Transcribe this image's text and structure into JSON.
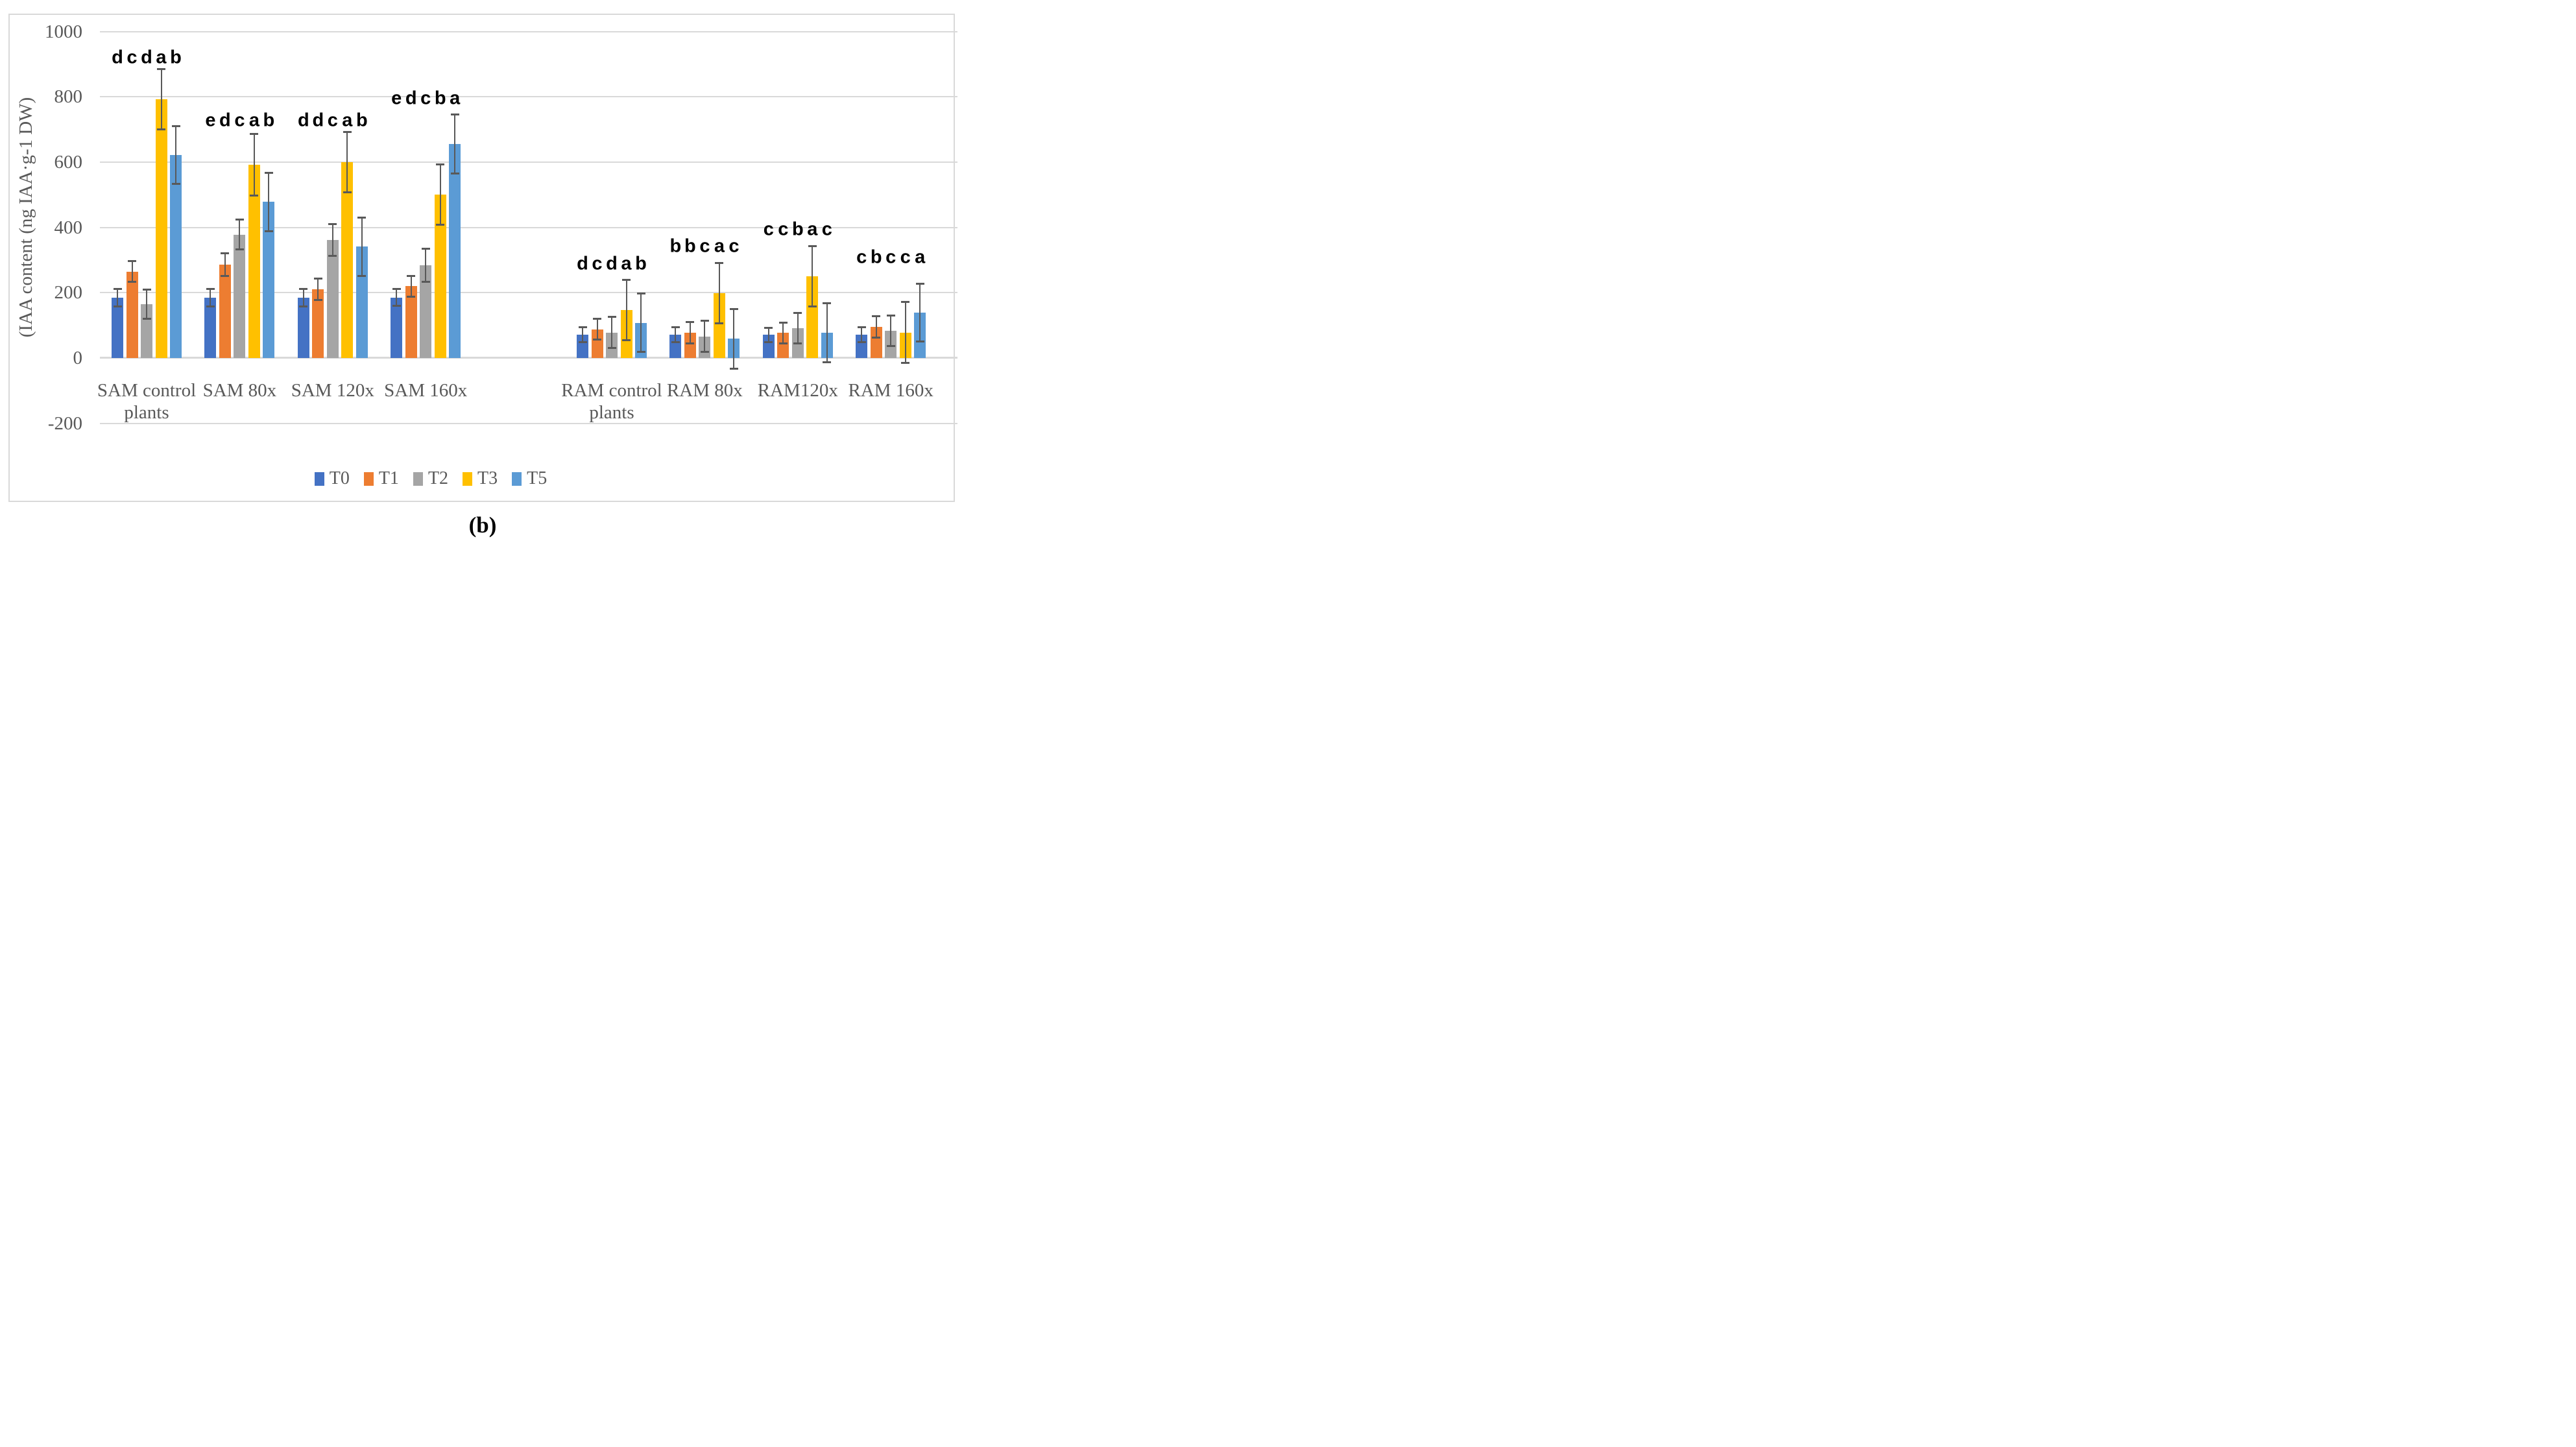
{
  "figure": {
    "background": "#FFFFFF",
    "border_color": "#D9D9D9"
  },
  "chart_data": {
    "type": "bar",
    "title": "",
    "xlabel": "",
    "ylabel": "(IAA content (ng IAA·g-1 DW)",
    "ylim": [
      -200,
      1000
    ],
    "yticks": [
      1000,
      800,
      600,
      400,
      200,
      0,
      -200
    ],
    "grid": true,
    "legend_position": "bottom",
    "error_bars": true,
    "gridline_color": "#D9D9D9",
    "errorbar_color": "#595959",
    "text_color": "#595959",
    "letter_color": "#000000",
    "categories": [
      "SAM control\nplants",
      "SAM 80x",
      "SAM 120x",
      "SAM 160x",
      "RAM control\nplants",
      "RAM 80x",
      "RAM120x",
      "RAM 160x"
    ],
    "blank_slot_after_index": 3,
    "series": [
      {
        "name": "T0",
        "color": "#4472C4",
        "values": [
          185,
          185,
          185,
          185,
          72,
          72,
          71,
          71
        ],
        "errors": [
          27,
          27,
          27,
          26,
          23,
          23,
          22,
          23
        ]
      },
      {
        "name": "T1",
        "color": "#ED7D31",
        "values": [
          265,
          286,
          211,
          220,
          88,
          78,
          77,
          96
        ],
        "errors": [
          32,
          34,
          33,
          32,
          32,
          33,
          32,
          33
        ]
      },
      {
        "name": "T2",
        "color": "#A5A5A5",
        "values": [
          165,
          378,
          362,
          284,
          78,
          66,
          91,
          83
        ],
        "errors": [
          45,
          46,
          49,
          50,
          48,
          48,
          47,
          47
        ]
      },
      {
        "name": "T3",
        "color": "#FFC000",
        "values": [
          793,
          592,
          600,
          501,
          147,
          199,
          250,
          78
        ],
        "errors": [
          93,
          94,
          92,
          92,
          92,
          93,
          93,
          93
        ]
      },
      {
        "name": "T5",
        "color": "#5B9BD5",
        "values": [
          622,
          478,
          341,
          656,
          108,
          59,
          77,
          139
        ],
        "errors": [
          88,
          89,
          89,
          90,
          89,
          91,
          91,
          89
        ]
      }
    ],
    "significance_letters": [
      [
        "d",
        "c",
        "d",
        "a",
        "b"
      ],
      [
        "e",
        "d",
        "c",
        "a",
        "b"
      ],
      [
        "d",
        "d",
        "c",
        "a",
        "b"
      ],
      [
        "e",
        "d",
        "c",
        "b",
        "a"
      ],
      [
        "d",
        "c",
        "d",
        "a",
        "b"
      ],
      [
        "b",
        "b",
        "c",
        "a",
        "c"
      ],
      [
        "c",
        "c",
        "b",
        "a",
        "c"
      ],
      [
        "c",
        "b",
        "c",
        "c",
        "a"
      ]
    ],
    "letters_y": [
      920,
      728,
      728,
      795,
      288,
      342,
      393,
      308
    ],
    "caption": "(b)"
  }
}
